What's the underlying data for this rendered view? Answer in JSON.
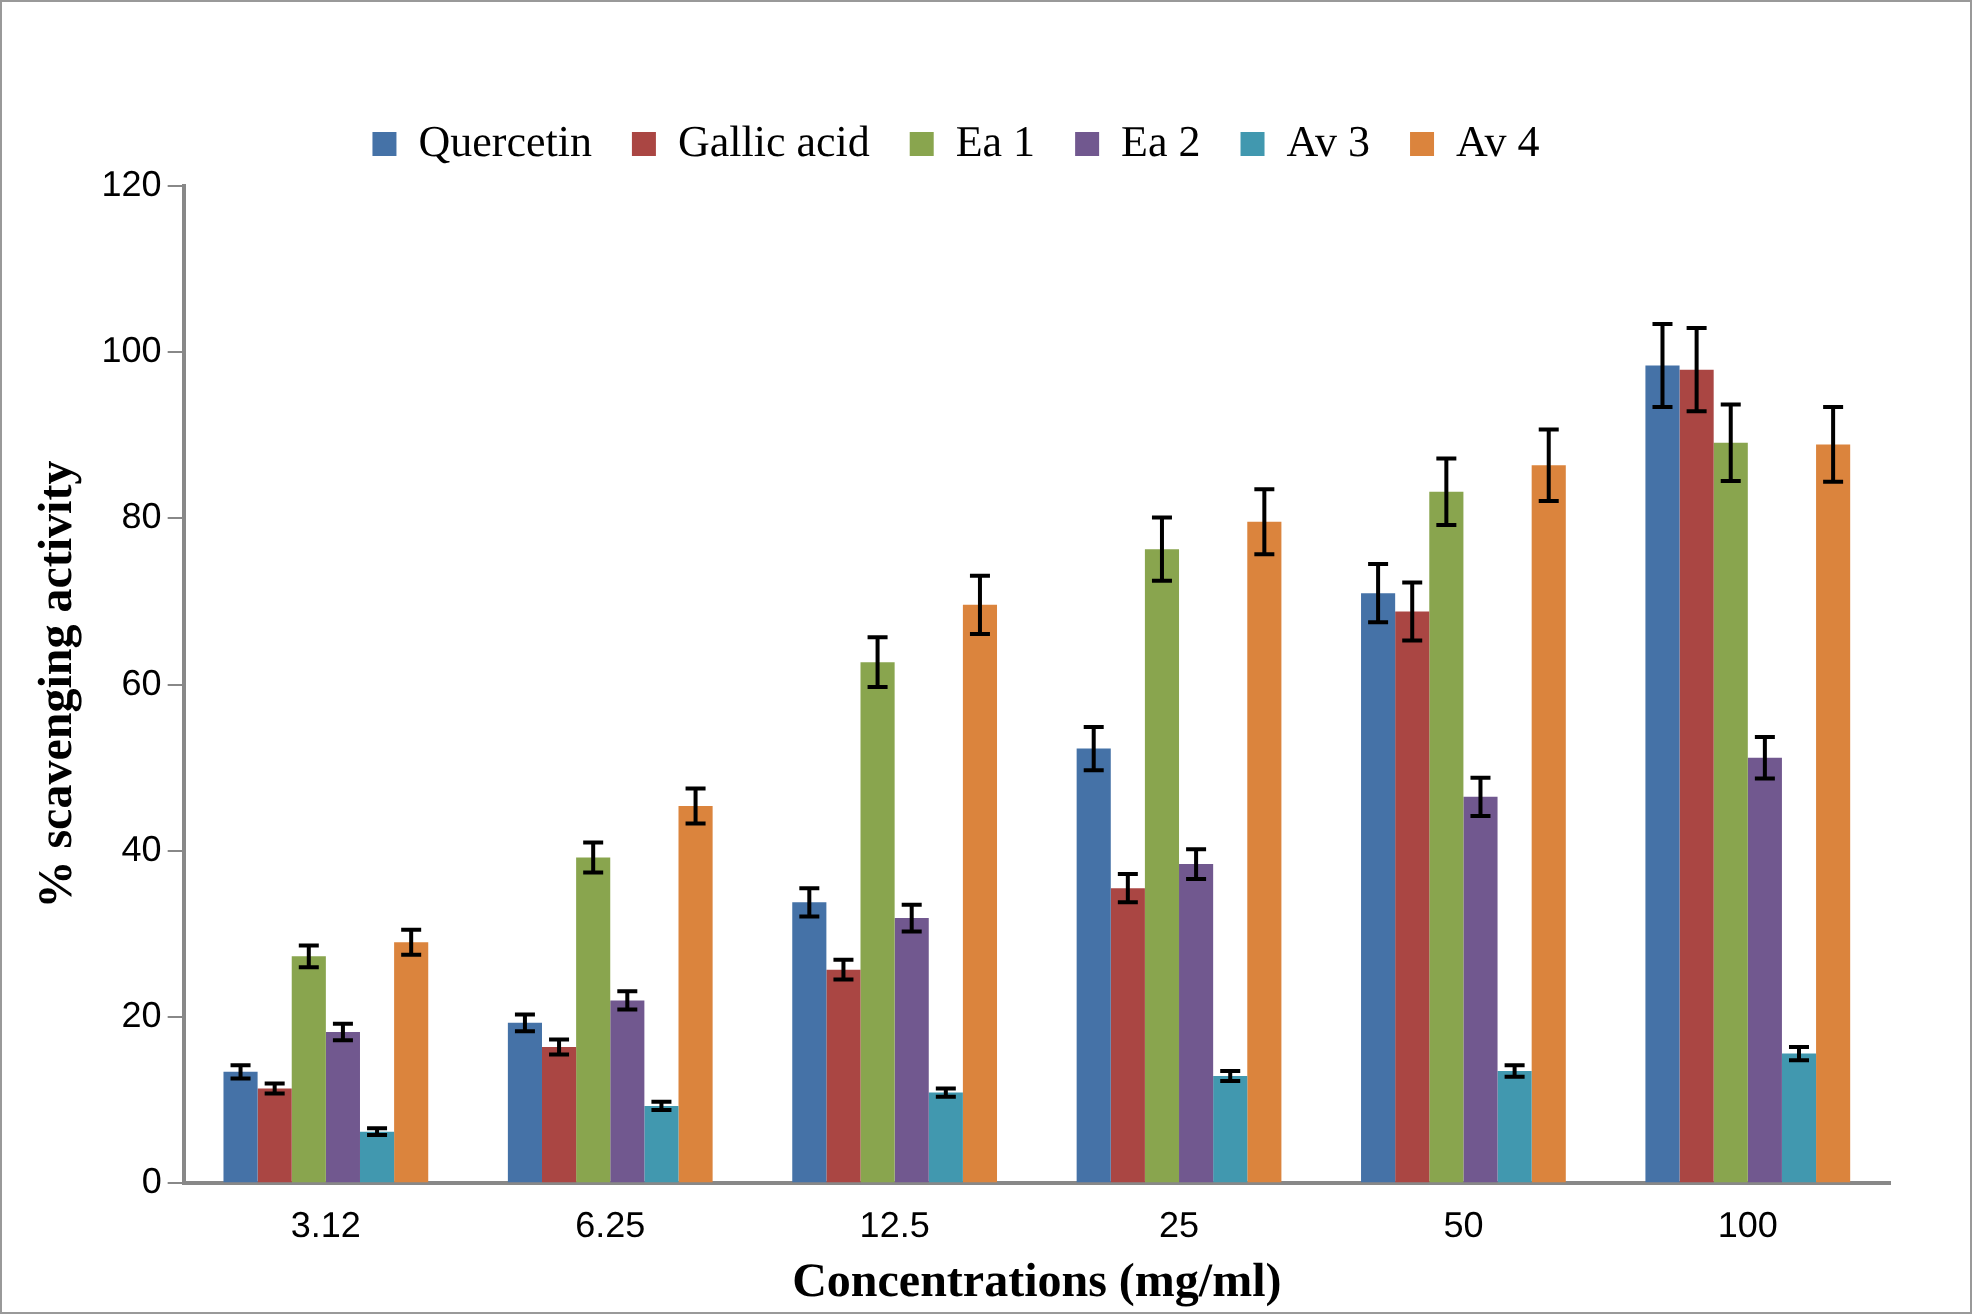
{
  "chart_data": {
    "type": "bar",
    "xlabel": "Concentrations (mg/ml)",
    "ylabel": "% scavenging activity",
    "categories": [
      "3.12",
      "6.25",
      "12.5",
      "25",
      "50",
      "100"
    ],
    "ylim": [
      0,
      120
    ],
    "yticks": [
      0,
      20,
      40,
      60,
      80,
      100,
      120
    ],
    "grid": false,
    "legend": "top",
    "series": [
      {
        "name": "Quercetin",
        "color": "#4572a7",
        "values": [
          13.4,
          19.3,
          33.8,
          52.3,
          71,
          98.4
        ],
        "errors": [
          0.8,
          1,
          1.7,
          2.6,
          3.5,
          5
        ]
      },
      {
        "name": "Gallic acid",
        "color": "#aa4643",
        "values": [
          11.4,
          16.4,
          25.7,
          35.5,
          68.8,
          97.9
        ],
        "errors": [
          0.6,
          0.9,
          1.2,
          1.7,
          3.5,
          5
        ]
      },
      {
        "name": "Ea 1",
        "color": "#89a54e",
        "values": [
          27.3,
          39.2,
          62.7,
          76.3,
          83.2,
          89.1
        ],
        "errors": [
          1.3,
          1.8,
          3,
          3.8,
          4,
          4.6
        ]
      },
      {
        "name": "Ea 2",
        "color": "#71588f",
        "values": [
          18.2,
          22,
          31.9,
          38.4,
          46.5,
          51.2
        ],
        "errors": [
          1,
          1.1,
          1.6,
          1.8,
          2.3,
          2.5
        ]
      },
      {
        "name": "Av 3",
        "color": "#4198af",
        "values": [
          6.2,
          9.3,
          10.9,
          12.9,
          13.5,
          15.6
        ],
        "errors": [
          0.4,
          0.5,
          0.5,
          0.6,
          0.7,
          0.8
        ]
      },
      {
        "name": "Av 4",
        "color": "#db843d",
        "values": [
          29,
          45.4,
          69.6,
          79.6,
          86.4,
          88.9
        ],
        "errors": [
          1.5,
          2.1,
          3.5,
          3.9,
          4.3,
          4.5
        ]
      }
    ]
  }
}
